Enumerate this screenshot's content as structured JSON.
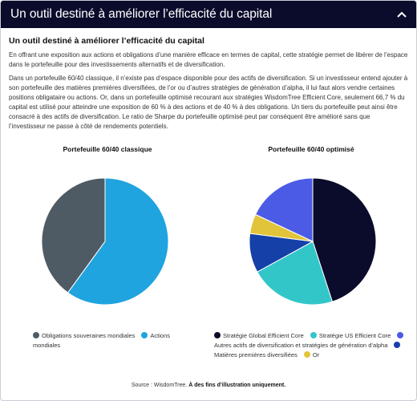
{
  "header": {
    "title": "Un outil destiné à améliorer l’efficacité du capital"
  },
  "article": {
    "heading": "Un outil destiné à améliorer l’efficacité du capital",
    "paragraphs": [
      "En offrant une exposition aux actions et obligations d’une manière efficace en termes de capital, cette stratégie permet de libérer de l’espace dans le portefeuille pour des investissements alternatifs et de diversification.",
      "Dans un portefeuille 60/40 classique, il n’existe pas d’espace disponible pour des actifs de diversification. Si un investisseur entend ajouter à son portefeuille des matières premières diversifiées, de l’or ou d’autres stratégies de génération d’alpha, il lui faut alors vendre certaines positions obligataire ou actions. Or, dans un portefeuille optimisé recourant aux stratégies WisdomTree Efficient Core, seulement 66,7 % du capital est utilisé pour atteindre une exposition de 60 % à des actions et de 40 % à des obligations. Un tiers du portefeuille peut ainsi être consacré à des actifs de diversification. Le ratio de Sharpe du portefeuille optimisé peut par conséquent être amélioré sans que l’investisseur ne passe à côté de rendements potentiels."
    ]
  },
  "chart_data": [
    {
      "type": "pie",
      "title": "Portefeuille 60/40 classique",
      "slices": [
        {
          "label": "Actions mondiales",
          "value": 60,
          "color": "#1fa4df"
        },
        {
          "label": "Obligations souveraines mondiales",
          "value": 40,
          "color": "#4f5b64"
        }
      ],
      "legend_order": [
        "Obligations souveraines mondiales",
        "Actions mondiales"
      ],
      "legend_position": "bottom"
    },
    {
      "type": "pie",
      "title": "Portefeuille 60/40 optimisé",
      "slices": [
        {
          "label": "Stratégie Global Efficient Core",
          "value": 45,
          "color": "#0b0b2b"
        },
        {
          "label": "Stratégie US Efficient Core",
          "value": 22,
          "color": "#33c6c9"
        },
        {
          "label": "Matières premières diversifiées",
          "value": 10,
          "color": "#1440a8"
        },
        {
          "label": "Or",
          "value": 5,
          "color": "#e2c43a"
        },
        {
          "label": "Autres actifs de diversification et stratégies de génération d’alpha",
          "value": 18,
          "color": "#4b5be6"
        }
      ],
      "legend_order": [
        "Stratégie Global Efficient Core",
        "Stratégie US Efficient Core",
        "Autres actifs de diversification et stratégies de génération d’alpha",
        "Matières premières diversifiées",
        "Or"
      ],
      "legend_position": "bottom"
    }
  ],
  "footer": {
    "source_prefix": "Source : WisdomTree.",
    "source_bold": "À des fins d’illustration uniquement."
  },
  "colors": {
    "header_bg": "#0b0b2b"
  },
  "icons": {
    "collapse": "chevron-up-icon"
  }
}
